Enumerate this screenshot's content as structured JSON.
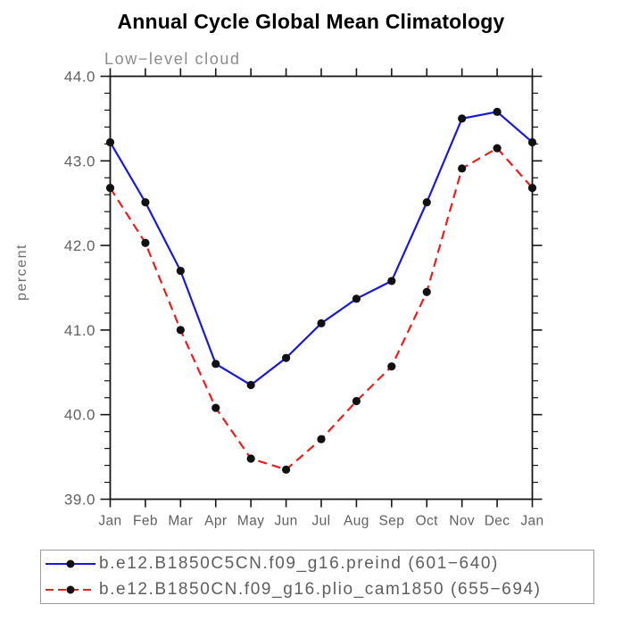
{
  "chart_data": {
    "type": "line",
    "title": "Annual Cycle Global Mean Climatology",
    "subtitle": "Low−level cloud",
    "xlabel": "",
    "ylabel": "percent",
    "categories": [
      "Jan",
      "Feb",
      "Mar",
      "Apr",
      "May",
      "Jun",
      "Jul",
      "Aug",
      "Sep",
      "Oct",
      "Nov",
      "Dec",
      "Jan"
    ],
    "ylim": [
      39.0,
      44.0
    ],
    "ytick_major": 1.0,
    "ytick_minor": 0.2,
    "ytick_labels": [
      "39.0",
      "40.0",
      "41.0",
      "42.0",
      "43.0",
      "44.0"
    ],
    "grid": false,
    "legend_position": "bottom",
    "series": [
      {
        "name": "b.e12.B1850C5CN.f09_g16.preind (601−640)",
        "color": "#1a1ad6",
        "style": "solid",
        "marker": "filled-circle",
        "marker_color": "#111111",
        "values": [
          43.22,
          42.51,
          41.7,
          40.6,
          40.35,
          40.67,
          41.08,
          41.37,
          41.58,
          42.51,
          43.5,
          43.58,
          43.22
        ]
      },
      {
        "name": "b.e12.B1850CN.f09_g16.plio_cam1850 (655−694)",
        "color": "#e81f1f",
        "style": "dashed",
        "marker": "filled-circle",
        "marker_color": "#111111",
        "values": [
          42.68,
          42.03,
          41.0,
          40.08,
          39.48,
          39.35,
          39.71,
          40.16,
          40.57,
          41.45,
          42.91,
          43.15,
          42.68
        ]
      }
    ],
    "axis_color": "#161616",
    "label_color": "#616161"
  }
}
